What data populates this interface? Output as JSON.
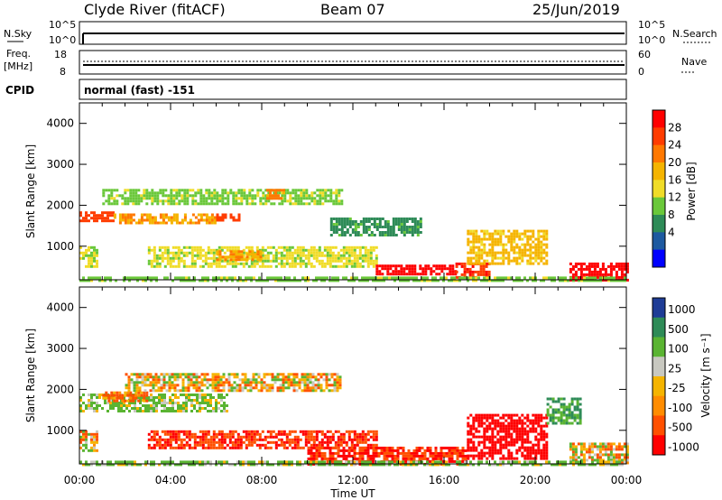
{
  "header": {
    "station": "Clyde River (fitACF)",
    "beam": "Beam 07",
    "date": "25/Jun/2019"
  },
  "top_panels": {
    "nsky_label": "N.Sky",
    "nsky_ticks": [
      "10^5",
      "10^0"
    ],
    "nsearch_label": "N.Search",
    "nsearch_ticks": [
      "10^5",
      "10^0"
    ],
    "freq_label_1": "Freq.",
    "freq_label_2": "[MHz]",
    "freq_ticks": [
      "18",
      "8"
    ],
    "nave_label": "Nave",
    "nave_ticks": [
      "60",
      "0"
    ],
    "cpid_label": "CPID",
    "cpid_value": "normal (fast) -151"
  },
  "axes": {
    "ylabel": "Slant Range [km]",
    "xlabel": "Time UT",
    "yticks": [
      "4000",
      "3000",
      "2000",
      "1000"
    ],
    "xticks": [
      "00:00",
      "04:00",
      "08:00",
      "12:00",
      "16:00",
      "20:00",
      "00:00"
    ]
  },
  "power_scale": {
    "title": "Power [dB]",
    "labels": [
      "28",
      "24",
      "20",
      "16",
      "12",
      "8",
      "4"
    ],
    "colors": [
      "#ff0000",
      "#ff3c00",
      "#ff7800",
      "#f5b400",
      "#f0dc28",
      "#6ac83a",
      "#2e8b57",
      "#1e5aa0",
      "#0000ff"
    ]
  },
  "velocity_scale": {
    "title": "Velocity [m s⁻¹]",
    "labels": [
      "1000",
      "500",
      "100",
      "25",
      "-25",
      "-100",
      "-500",
      "-1000"
    ],
    "colors": [
      "#1e3c96",
      "#2e8b57",
      "#5ab432",
      "#c8c8c0",
      "#f5b400",
      "#ff8c00",
      "#ff5000",
      "#ff0000"
    ]
  },
  "chart_data": [
    {
      "type": "heatmap",
      "title": "Power [dB]",
      "xlabel": "Time UT",
      "ylabel": "Slant Range [km]",
      "x_unit": "hours UT",
      "xlim": [
        0,
        24
      ],
      "ylim": [
        180,
        4500
      ],
      "clim": [
        0,
        30
      ],
      "regions": [
        {
          "t0": 0.0,
          "t1": 1.5,
          "r0": 1600,
          "r1": 1850,
          "value": 26
        },
        {
          "t0": 1.5,
          "t1": 6.0,
          "r0": 1550,
          "r1": 1800,
          "value": 20
        },
        {
          "t0": 6.0,
          "t1": 7.0,
          "r0": 1650,
          "r1": 1800,
          "value": 26
        },
        {
          "t0": 1.0,
          "t1": 11.5,
          "r0": 2050,
          "r1": 2400,
          "value": 12
        },
        {
          "t0": 8.2,
          "t1": 9.0,
          "r0": 2150,
          "r1": 2400,
          "value": 22
        },
        {
          "t0": 0.0,
          "t1": 0.8,
          "r0": 500,
          "r1": 1000,
          "value": 14
        },
        {
          "t0": 3.0,
          "t1": 13.0,
          "r0": 500,
          "r1": 1000,
          "value": 14
        },
        {
          "t0": 6.0,
          "t1": 8.0,
          "r0": 700,
          "r1": 900,
          "value": 20
        },
        {
          "t0": 13.0,
          "t1": 16.5,
          "r0": 300,
          "r1": 550,
          "value": 30
        },
        {
          "t0": 16.5,
          "t1": 18.0,
          "r0": 250,
          "r1": 600,
          "value": 28
        },
        {
          "t0": 17.0,
          "t1": 20.5,
          "r0": 600,
          "r1": 1400,
          "value": 18
        },
        {
          "t0": 21.5,
          "t1": 24.0,
          "r0": 200,
          "r1": 600,
          "value": 30
        },
        {
          "t0": 11.0,
          "t1": 15.0,
          "r0": 1300,
          "r1": 1700,
          "value": 8
        },
        {
          "t0": 0.0,
          "t1": 24.0,
          "r0": 180,
          "r1": 260,
          "value": 12
        }
      ]
    },
    {
      "type": "heatmap",
      "title": "Velocity [m s⁻¹]",
      "xlabel": "Time UT",
      "ylabel": "Slant Range [km]",
      "x_unit": "hours UT",
      "xlim": [
        0,
        24
      ],
      "ylim": [
        180,
        4500
      ],
      "clim": [
        -1000,
        1000
      ],
      "regions": [
        {
          "t0": 0.0,
          "t1": 6.5,
          "r0": 1500,
          "r1": 1900,
          "value": 100
        },
        {
          "t0": 1.0,
          "t1": 3.0,
          "r0": 1750,
          "r1": 1950,
          "value": -100
        },
        {
          "t0": 2.0,
          "t1": 11.5,
          "r0": 1950,
          "r1": 2400,
          "value": 0
        },
        {
          "t0": 0.0,
          "t1": 0.8,
          "r0": 500,
          "r1": 1000,
          "value": 0
        },
        {
          "t0": 3.0,
          "t1": 13.0,
          "r0": 600,
          "r1": 1000,
          "value": -300
        },
        {
          "t0": 10.0,
          "t1": 17.0,
          "r0": 200,
          "r1": 600,
          "value": -300
        },
        {
          "t0": 17.0,
          "t1": 20.5,
          "r0": 300,
          "r1": 1400,
          "value": -600
        },
        {
          "t0": 20.5,
          "t1": 22.0,
          "r0": 1200,
          "r1": 1800,
          "value": 300
        },
        {
          "t0": 21.5,
          "t1": 24.0,
          "r0": 200,
          "r1": 700,
          "value": 0
        },
        {
          "t0": 0.0,
          "t1": 24.0,
          "r0": 180,
          "r1": 260,
          "value": 100
        }
      ]
    }
  ]
}
